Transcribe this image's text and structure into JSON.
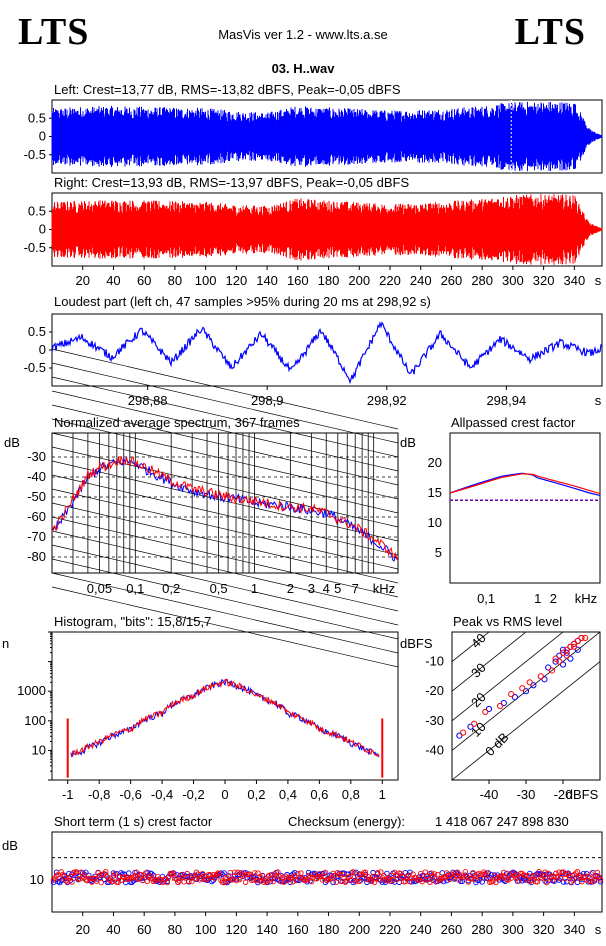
{
  "header": {
    "logo_left": "LTS",
    "logo_right": "LTS",
    "app_title": "MasVis ver 1.2 - www.lts.a.se",
    "file_name": "03. H..wav"
  },
  "colors": {
    "left_channel": "#0000ff",
    "right_channel": "#ff0000"
  },
  "chart_data": [
    {
      "id": "left",
      "type": "line",
      "title": "Left: Crest=13,77 dB, RMS=-13,82 dBFS, Peak=-0,05 dBFS",
      "ytick_labels": [
        "0.5",
        "0",
        "-0.5"
      ],
      "yticks": [
        0.5,
        0,
        -0.5
      ],
      "ylim": [
        -1,
        1
      ],
      "xlim": [
        0,
        358
      ],
      "envelope_x": [
        0,
        20,
        40,
        60,
        80,
        100,
        120,
        140,
        160,
        170,
        180,
        200,
        220,
        240,
        260,
        280,
        290,
        300,
        320,
        340,
        345,
        350,
        358
      ],
      "envelope_amp": [
        0.78,
        0.82,
        0.84,
        0.82,
        0.8,
        0.78,
        0.7,
        0.66,
        0.85,
        0.82,
        0.8,
        0.76,
        0.72,
        0.74,
        0.78,
        0.84,
        0.9,
        0.95,
        0.97,
        0.96,
        0.6,
        0.2,
        0.03
      ],
      "marker_x": 298.92
    },
    {
      "id": "right",
      "type": "line",
      "title": "Right: Crest=13,93 dB, RMS=-13,97 dBFS, Peak=-0,05 dBFS",
      "ytick_labels": [
        "0.5",
        "0",
        "-0.5"
      ],
      "yticks": [
        0.5,
        0,
        -0.5
      ],
      "ylim": [
        -1,
        1
      ],
      "xlim": [
        0,
        358
      ],
      "xticks": [
        20,
        40,
        60,
        80,
        100,
        120,
        140,
        160,
        180,
        200,
        220,
        240,
        260,
        280,
        300,
        320,
        340
      ],
      "xtick_labels": [
        "20",
        "40",
        "60",
        "80",
        "100",
        "120",
        "140",
        "160",
        "180",
        "200",
        "220",
        "240",
        "260",
        "280",
        "300",
        "320",
        "340"
      ],
      "xunit": "s",
      "envelope_x": [
        0,
        20,
        40,
        60,
        80,
        100,
        120,
        140,
        160,
        170,
        180,
        200,
        220,
        240,
        260,
        280,
        290,
        300,
        320,
        340,
        345,
        350,
        358
      ],
      "envelope_amp": [
        0.76,
        0.8,
        0.82,
        0.8,
        0.78,
        0.76,
        0.68,
        0.65,
        0.86,
        0.83,
        0.8,
        0.75,
        0.7,
        0.73,
        0.78,
        0.85,
        0.92,
        0.95,
        0.97,
        0.96,
        0.55,
        0.18,
        0.03
      ]
    },
    {
      "id": "loudest",
      "type": "line",
      "title": "Loudest part (left  ch, 47 samples >95% during 20 ms at 298,92 s)",
      "ytick_labels": [
        "0.5",
        "0",
        "-0.5"
      ],
      "yticks": [
        0.5,
        0,
        -0.5
      ],
      "ylim": [
        -1,
        1
      ],
      "xlim": [
        298.864,
        298.956
      ],
      "xticks": [
        298.88,
        298.9,
        298.92,
        298.94
      ],
      "xtick_labels": [
        "298,88",
        "298,9",
        "298,92",
        "298,94"
      ],
      "xunit": "s",
      "x": [
        298.864,
        298.869,
        298.874,
        298.879,
        298.884,
        298.889,
        298.894,
        298.899,
        298.904,
        298.909,
        298.914,
        298.919,
        298.924,
        298.929,
        298.934,
        298.939,
        298.944,
        298.949,
        298.954,
        298.956
      ],
      "y": [
        0.05,
        0.35,
        -0.2,
        0.55,
        -0.35,
        0.6,
        -0.5,
        0.45,
        -0.6,
        0.55,
        -0.85,
        0.75,
        -0.7,
        0.45,
        -0.5,
        0.3,
        -0.25,
        0.2,
        -0.1,
        0.05
      ]
    },
    {
      "id": "spectrum",
      "type": "line",
      "title": "Normalized average spectrum, 367 frames",
      "yunit": "dB",
      "ytick_labels": [
        "-30",
        "-40",
        "-50",
        "-60",
        "-70",
        "-80"
      ],
      "yticks": [
        -30,
        -40,
        -50,
        -60,
        -70,
        -80
      ],
      "ylim": [
        -88,
        -18
      ],
      "xscale": "log",
      "xlim": [
        0.02,
        16
      ],
      "xtick_labels": [
        "0,05",
        "0,1",
        "0,2",
        "0,5",
        "1",
        "2",
        "3",
        "4",
        "5",
        "7",
        "kHz"
      ],
      "xticks": [
        0.05,
        0.1,
        0.2,
        0.5,
        1,
        2,
        3,
        4,
        5,
        7
      ],
      "x": [
        0.02,
        0.025,
        0.03,
        0.04,
        0.05,
        0.06,
        0.07,
        0.08,
        0.1,
        0.12,
        0.15,
        0.2,
        0.3,
        0.5,
        0.7,
        1,
        1.5,
        2,
        3,
        4,
        5,
        7,
        10,
        13,
        16
      ],
      "series": [
        {
          "name": "left",
          "values": [
            -68,
            -60,
            -52,
            -40,
            -36,
            -34,
            -33,
            -32,
            -33,
            -36,
            -39,
            -43,
            -47,
            -50,
            -51,
            -53,
            -54,
            -55,
            -57,
            -58,
            -61,
            -66,
            -72,
            -77,
            -82
          ]
        },
        {
          "name": "right",
          "values": [
            -67,
            -59,
            -51,
            -39,
            -35,
            -34,
            -32,
            -31,
            -33,
            -35,
            -38,
            -42,
            -46,
            -49,
            -51,
            -52,
            -54,
            -55,
            -56,
            -58,
            -61,
            -65,
            -71,
            -76,
            -81
          ]
        }
      ]
    },
    {
      "id": "crest_allpass",
      "type": "line",
      "title": "Allpassed crest factor",
      "yunit": "dB",
      "ytick_labels": [
        "20",
        "15",
        "10",
        "5"
      ],
      "yticks": [
        20,
        15,
        10,
        5
      ],
      "ylim": [
        0,
        25
      ],
      "xscale": "log",
      "xlim": [
        0.02,
        16
      ],
      "xtick_labels": [
        "0,1",
        "1",
        "2",
        "kHz"
      ],
      "xticks": [
        0.1,
        1,
        2
      ],
      "x": [
        0.02,
        0.05,
        0.1,
        0.2,
        0.5,
        0.8,
        1,
        2,
        5,
        10,
        16
      ],
      "reference_level": 13.8,
      "series": [
        {
          "name": "left",
          "values": [
            15.0,
            16.2,
            17.0,
            17.8,
            18.3,
            18.0,
            17.5,
            16.8,
            15.8,
            15.0,
            14.6
          ]
        },
        {
          "name": "right",
          "values": [
            15.0,
            16.0,
            16.8,
            17.6,
            18.2,
            18.1,
            17.8,
            17.1,
            16.2,
            15.4,
            14.9
          ]
        }
      ]
    },
    {
      "id": "histogram",
      "type": "line",
      "title": "Histogram, \"bits\": 15,8/15,7",
      "yunit": "n",
      "yscale": "log",
      "ytick_labels": [
        "1000",
        "100",
        "10"
      ],
      "yticks": [
        1000,
        100,
        10
      ],
      "ylim": [
        1,
        100000
      ],
      "xlim": [
        -1.1,
        1.1
      ],
      "xticks": [
        -1,
        -0.8,
        -0.6,
        -0.4,
        -0.2,
        0,
        0.2,
        0.4,
        0.6,
        0.8,
        1
      ],
      "xtick_labels": [
        "-1",
        "-0,8",
        "-0,6",
        "-0,4",
        "-0,2",
        "0",
        "0,2",
        "0,4",
        "0,6",
        "0,8",
        "1"
      ],
      "x": [
        -0.98,
        -0.9,
        -0.8,
        -0.6,
        -0.4,
        -0.2,
        0,
        0.2,
        0.4,
        0.6,
        0.8,
        0.9,
        0.98
      ],
      "series": [
        {
          "name": "left",
          "values": [
            7,
            10,
            18,
            50,
            180,
            700,
            2100,
            700,
            180,
            50,
            18,
            10,
            7
          ]
        },
        {
          "name": "right",
          "values": [
            7,
            11,
            19,
            52,
            185,
            720,
            2100,
            720,
            185,
            52,
            19,
            11,
            7
          ]
        }
      ],
      "clip_spike": 120
    },
    {
      "id": "peak_vs_rms",
      "type": "scatter",
      "title": "Peak vs RMS level",
      "yunit": "dBFS",
      "xunit": "dBFS",
      "ytick_labels": [
        "-10",
        "-20",
        "-30",
        "-40"
      ],
      "yticks": [
        -10,
        -20,
        -30,
        -40
      ],
      "xtick_labels": [
        "-40",
        "-30",
        "-20"
      ],
      "xticks": [
        -40,
        -30,
        -20
      ],
      "xlim": [
        -50,
        -10
      ],
      "ylim": [
        -50,
        0
      ],
      "diagonal_labels": [
        "40",
        "30",
        "20",
        "10",
        "0 dB"
      ],
      "diagonal_offsets": [
        40,
        30,
        20,
        10,
        0
      ],
      "series": [
        {
          "name": "left",
          "x": [
            -48,
            -45,
            -40,
            -36,
            -33,
            -30,
            -28,
            -25,
            -24,
            -22,
            -21,
            -20,
            -19,
            -18,
            -17,
            -16,
            -15,
            -16,
            -18,
            -20
          ],
          "y": [
            -35,
            -32,
            -26,
            -24,
            -22,
            -20,
            -18,
            -16,
            -12,
            -10,
            -8,
            -6,
            -7,
            -5,
            -4,
            -3,
            -2,
            -6,
            -9,
            -11
          ]
        },
        {
          "name": "right",
          "x": [
            -47,
            -44,
            -41,
            -37,
            -34,
            -31,
            -29,
            -26,
            -23,
            -22,
            -20,
            -19,
            -18,
            -17,
            -16,
            -15,
            -14,
            -17,
            -19,
            -21
          ],
          "y": [
            -34,
            -31,
            -27,
            -25,
            -21,
            -19,
            -17,
            -15,
            -13,
            -9,
            -7,
            -6,
            -5,
            -4,
            -3,
            -2,
            -2,
            -5,
            -8,
            -10
          ]
        }
      ]
    },
    {
      "id": "short_term_crest",
      "type": "scatter",
      "title": "Short term (1 s) crest factor",
      "checksum_label": "Checksum (energy):",
      "checksum_value": "1 418 067 247 898 830",
      "yunit": "dB",
      "ytick_labels": [
        "10"
      ],
      "yticks": [
        10
      ],
      "ylim": [
        0,
        25
      ],
      "reference_level": 17,
      "xlim": [
        0,
        358
      ],
      "xticks": [
        20,
        40,
        60,
        80,
        100,
        120,
        140,
        160,
        180,
        200,
        220,
        240,
        260,
        280,
        300,
        320,
        340
      ],
      "xtick_labels": [
        "20",
        "40",
        "60",
        "80",
        "100",
        "120",
        "140",
        "160",
        "180",
        "200",
        "220",
        "240",
        "260",
        "280",
        "300",
        "320",
        "340"
      ],
      "xunit": "s",
      "series": [
        {
          "name": "left",
          "mean": 10.8,
          "spread": 1.6
        },
        {
          "name": "right",
          "mean": 10.9,
          "spread": 1.7
        }
      ]
    }
  ]
}
